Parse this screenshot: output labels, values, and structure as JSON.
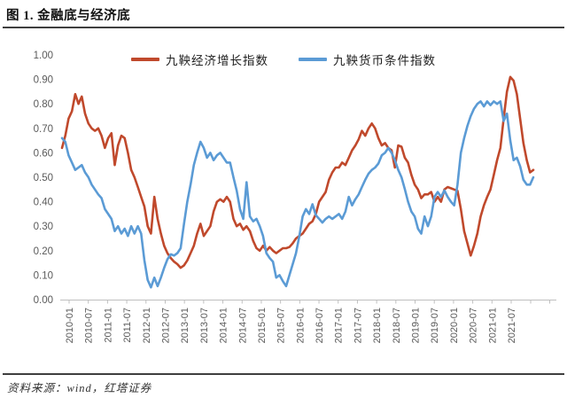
{
  "header": {
    "title": "图 1. 金融底与经济底"
  },
  "footer": {
    "source": "资料来源：wind，红塔证券"
  },
  "chart_data": {
    "type": "line",
    "title": "图 1. 金融底与经济底",
    "xlabel": "",
    "ylabel": "",
    "ylim": [
      0.0,
      1.0
    ],
    "grid": false,
    "legend_position": "top-center",
    "x_start": "2010-01",
    "x_interval": "monthly",
    "y_tick_labels": [
      "1.00",
      "0.90",
      "0.80",
      "0.70",
      "0.60",
      "0.50",
      "0.40",
      "0.30",
      "0.20",
      "0.10",
      "0.00"
    ],
    "x_tick_labels": [
      "2010-01",
      "2010-07",
      "2011-01",
      "2011-07",
      "2012-01",
      "2012-07",
      "2013-01",
      "2013-07",
      "2014-01",
      "2014-07",
      "2015-01",
      "2015-07",
      "2016-01",
      "2016-07",
      "2017-01",
      "2017-07",
      "2018-01",
      "2018-07",
      "2019-01",
      "2019-07",
      "2020-01",
      "2020-07",
      "2021-01",
      "2021-07"
    ],
    "series": [
      {
        "name": "九鞅经济增长指数",
        "color": "#c0492c",
        "values": [
          0.62,
          0.67,
          0.74,
          0.77,
          0.84,
          0.8,
          0.83,
          0.76,
          0.72,
          0.7,
          0.69,
          0.7,
          0.67,
          0.62,
          0.66,
          0.68,
          0.55,
          0.63,
          0.67,
          0.66,
          0.6,
          0.53,
          0.5,
          0.46,
          0.42,
          0.38,
          0.3,
          0.27,
          0.42,
          0.33,
          0.27,
          0.22,
          0.19,
          0.17,
          0.155,
          0.145,
          0.13,
          0.14,
          0.16,
          0.19,
          0.22,
          0.27,
          0.31,
          0.26,
          0.28,
          0.3,
          0.36,
          0.4,
          0.41,
          0.4,
          0.42,
          0.4,
          0.33,
          0.3,
          0.31,
          0.285,
          0.3,
          0.28,
          0.24,
          0.21,
          0.2,
          0.22,
          0.2,
          0.215,
          0.2,
          0.19,
          0.2,
          0.21,
          0.21,
          0.215,
          0.23,
          0.25,
          0.26,
          0.27,
          0.29,
          0.31,
          0.32,
          0.35,
          0.4,
          0.42,
          0.44,
          0.49,
          0.52,
          0.54,
          0.54,
          0.56,
          0.55,
          0.58,
          0.61,
          0.63,
          0.655,
          0.69,
          0.67,
          0.7,
          0.72,
          0.7,
          0.66,
          0.63,
          0.64,
          0.62,
          0.61,
          0.54,
          0.63,
          0.625,
          0.58,
          0.56,
          0.51,
          0.47,
          0.45,
          0.415,
          0.43,
          0.43,
          0.44,
          0.4,
          0.42,
          0.4,
          0.45,
          0.46,
          0.455,
          0.45,
          0.445,
          0.37,
          0.28,
          0.23,
          0.18,
          0.22,
          0.27,
          0.34,
          0.385,
          0.42,
          0.45,
          0.51,
          0.57,
          0.62,
          0.74,
          0.85,
          0.91,
          0.895,
          0.84,
          0.74,
          0.64,
          0.57,
          0.52,
          0.53
        ]
      },
      {
        "name": "九鞅货币条件指数",
        "color": "#5b9bd5",
        "values": [
          0.66,
          0.645,
          0.59,
          0.56,
          0.53,
          0.54,
          0.55,
          0.52,
          0.5,
          0.47,
          0.45,
          0.43,
          0.415,
          0.37,
          0.35,
          0.33,
          0.28,
          0.3,
          0.27,
          0.29,
          0.26,
          0.3,
          0.27,
          0.3,
          0.27,
          0.16,
          0.08,
          0.05,
          0.09,
          0.055,
          0.09,
          0.13,
          0.165,
          0.185,
          0.18,
          0.19,
          0.21,
          0.31,
          0.4,
          0.47,
          0.55,
          0.6,
          0.645,
          0.62,
          0.58,
          0.6,
          0.57,
          0.59,
          0.6,
          0.58,
          0.56,
          0.56,
          0.5,
          0.445,
          0.37,
          0.33,
          0.48,
          0.34,
          0.32,
          0.33,
          0.3,
          0.26,
          0.19,
          0.17,
          0.155,
          0.09,
          0.1,
          0.075,
          0.055,
          0.1,
          0.145,
          0.19,
          0.26,
          0.34,
          0.37,
          0.35,
          0.39,
          0.345,
          0.33,
          0.315,
          0.33,
          0.34,
          0.33,
          0.34,
          0.35,
          0.33,
          0.36,
          0.42,
          0.385,
          0.41,
          0.43,
          0.46,
          0.49,
          0.515,
          0.53,
          0.54,
          0.556,
          0.59,
          0.6,
          0.62,
          0.6,
          0.57,
          0.53,
          0.5,
          0.452,
          0.4,
          0.36,
          0.34,
          0.29,
          0.27,
          0.34,
          0.3,
          0.34,
          0.42,
          0.44,
          0.42,
          0.446,
          0.42,
          0.4,
          0.385,
          0.47,
          0.6,
          0.66,
          0.71,
          0.75,
          0.78,
          0.8,
          0.81,
          0.79,
          0.81,
          0.795,
          0.81,
          0.8,
          0.81,
          0.73,
          0.76,
          0.65,
          0.57,
          0.58,
          0.545,
          0.49,
          0.47,
          0.47,
          0.5
        ]
      }
    ]
  }
}
